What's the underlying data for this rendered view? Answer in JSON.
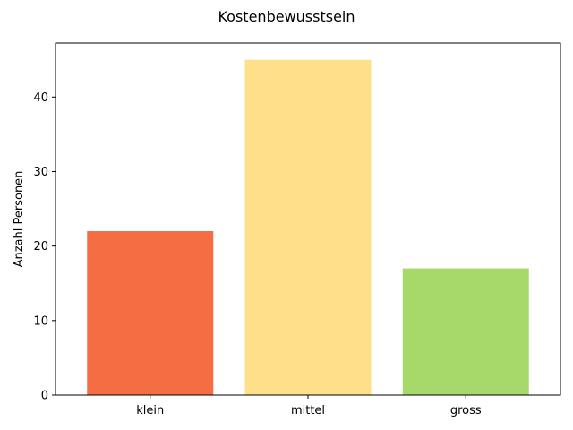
{
  "chart_data": {
    "type": "bar",
    "title": "Kostenbewusstsein",
    "xlabel": "",
    "ylabel": "Anzahl Personen",
    "categories": [
      "klein",
      "mittel",
      "gross"
    ],
    "values": [
      22,
      45,
      17
    ],
    "colors": [
      "#f46d43",
      "#fee08b",
      "#a6d96a"
    ],
    "ylim": [
      0,
      47.25
    ],
    "yticks": [
      0,
      10,
      20,
      30,
      40
    ],
    "grid": false,
    "legend": "none"
  }
}
